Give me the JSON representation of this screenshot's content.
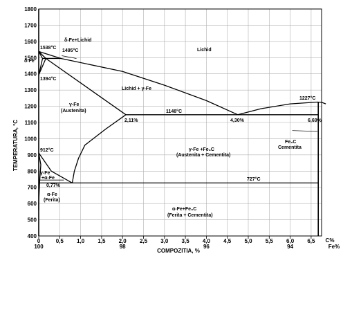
{
  "diagram": {
    "y_axis_title": "TEMPERATURA, °C",
    "x_axis_title": "COMPOZITIA, %",
    "x_unit_top": "C%",
    "x_unit_bottom": "Fe%",
    "y_ticks": [
      "1800",
      "1700",
      "1600",
      "1500",
      "1400",
      "1300",
      "1200",
      "1100",
      "1000",
      "900",
      "800",
      "700",
      "600",
      "500",
      "400"
    ],
    "x_ticks_c": [
      "0",
      "0,5",
      "1,0",
      "1,5",
      "2,0",
      "2,5",
      "3,0",
      "3,5",
      "4,0",
      "4,5",
      "5,0",
      "5,5",
      "6,0",
      "6,5"
    ],
    "x_ticks_fe": [
      {
        "at": 0,
        "label": "100"
      },
      {
        "at": 2,
        "label": "98"
      },
      {
        "at": 4,
        "label": "96"
      },
      {
        "at": 6,
        "label": "94"
      }
    ],
    "labels": {
      "t1538": "1538°C",
      "delta_fe": "δ-Fe",
      "delta_lichid": "δ-Fe+Lichid",
      "t1495": "1495°C",
      "t1394": "1394°C",
      "lichid": "Lichid",
      "lichid_gamma": "Lichid + γ-Fe",
      "gamma_fe": "γ-Fe",
      "austenita": "(Austenita)",
      "t1227": "1227°C",
      "t1148": "1148°C",
      "p211": "2,11%",
      "p430": "4,30%",
      "p669": "6,69%",
      "fe3c": "Fe₃C",
      "cementita": "Cementita",
      "t912": "912°C",
      "gamma_fe3c": "γ-Fe +Fe₃C",
      "aust_cem": "(Austenita + Cementita)",
      "gamma_alpha_1": "γ-Fe",
      "gamma_alpha_2": "+α-Fe",
      "p077": "0,77%",
      "t727": "727°C",
      "alpha_fe": "α-Fe",
      "ferita": "(Ferita)",
      "alpha_fe3c": "α-Fe+Fe₃C",
      "ferita_cem": "(Ferita + Cementita)"
    }
  }
}
